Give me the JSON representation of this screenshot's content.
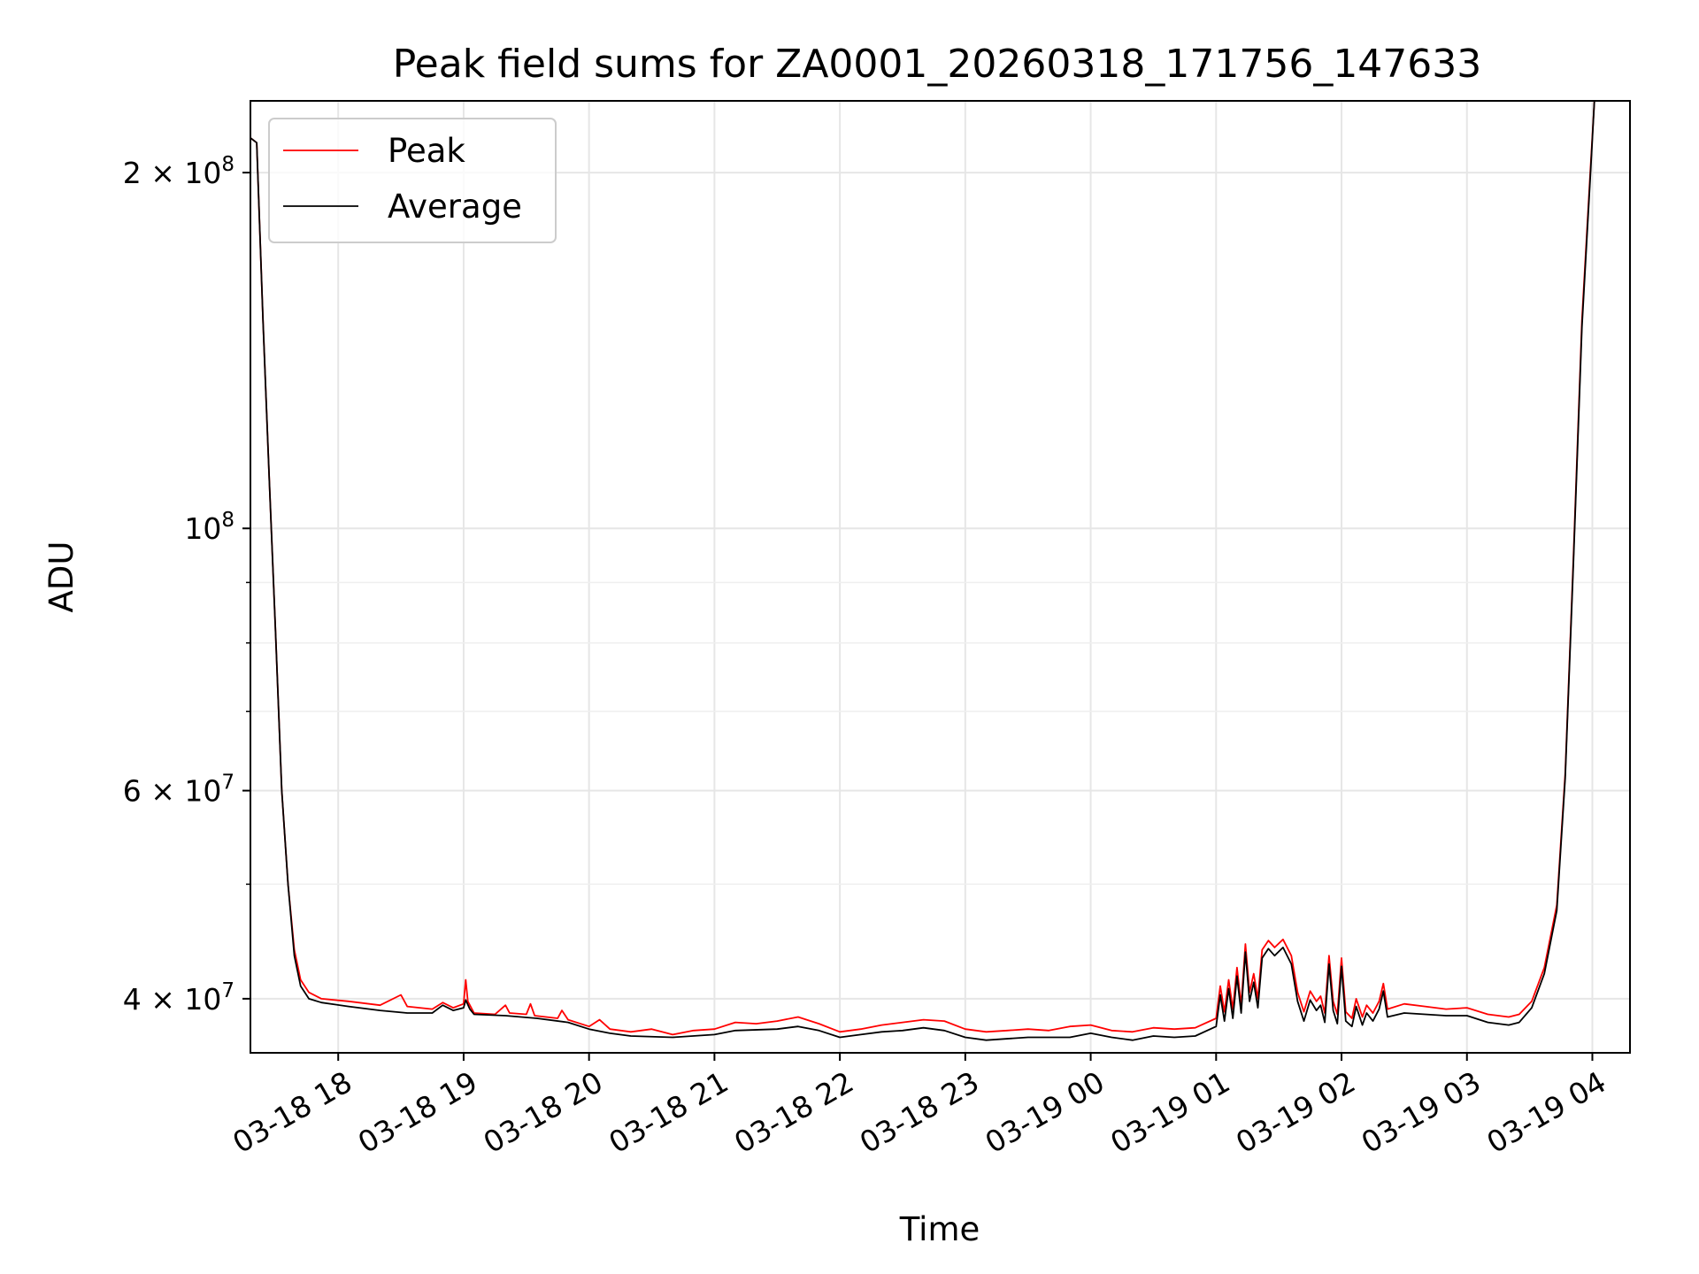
{
  "chart_data": {
    "type": "line",
    "title": "Peak field sums for ZA0001_20260318_171756_147633",
    "xlabel": "Time",
    "ylabel": "ADU",
    "yscale": "log",
    "xlim": [
      "2026-03-18 17:18",
      "2026-03-19 04:18"
    ],
    "ylim": [
      36000000,
      230000000
    ],
    "grid": true,
    "legend": "top-left",
    "x_ticks": [
      {
        "value": "2026-03-18 18:00",
        "label": "03-18 18"
      },
      {
        "value": "2026-03-18 19:00",
        "label": "03-18 19"
      },
      {
        "value": "2026-03-18 20:00",
        "label": "03-18 20"
      },
      {
        "value": "2026-03-18 21:00",
        "label": "03-18 21"
      },
      {
        "value": "2026-03-18 22:00",
        "label": "03-18 22"
      },
      {
        "value": "2026-03-18 23:00",
        "label": "03-18 23"
      },
      {
        "value": "2026-03-19 00:00",
        "label": "03-19 00"
      },
      {
        "value": "2026-03-19 01:00",
        "label": "03-19 01"
      },
      {
        "value": "2026-03-19 02:00",
        "label": "03-19 02"
      },
      {
        "value": "2026-03-19 03:00",
        "label": "03-19 03"
      },
      {
        "value": "2026-03-19 04:00",
        "label": "03-19 04"
      }
    ],
    "y_major_ticks": [
      {
        "value": 40000000,
        "base": "4 × 10",
        "exp": "7"
      },
      {
        "value": 60000000,
        "base": "6 × 10",
        "exp": "7"
      },
      {
        "value": 100000000,
        "base": "10",
        "exp": "8"
      },
      {
        "value": 200000000,
        "base": "2 × 10",
        "exp": "8"
      }
    ],
    "y_minor_ticks": [
      50000000,
      70000000,
      80000000,
      90000000
    ],
    "series": [
      {
        "name": "Peak",
        "color": "#ff0000",
        "points": [
          [
            "2026-03-18 17:18",
            214000000
          ],
          [
            "2026-03-18 17:21",
            212000000
          ],
          [
            "2026-03-18 17:24",
            150000000
          ],
          [
            "2026-03-18 17:27",
            110000000
          ],
          [
            "2026-03-18 17:30",
            82000000
          ],
          [
            "2026-03-18 17:33",
            60000000
          ],
          [
            "2026-03-18 17:36",
            50000000
          ],
          [
            "2026-03-18 17:39",
            44000000
          ],
          [
            "2026-03-18 17:42",
            41500000
          ],
          [
            "2026-03-18 17:46",
            40500000
          ],
          [
            "2026-03-18 17:52",
            40000000
          ],
          [
            "2026-03-18 18:05",
            39800000
          ],
          [
            "2026-03-18 18:20",
            39500000
          ],
          [
            "2026-03-18 18:30",
            40300000
          ],
          [
            "2026-03-18 18:33",
            39400000
          ],
          [
            "2026-03-18 18:45",
            39200000
          ],
          [
            "2026-03-18 18:50",
            39700000
          ],
          [
            "2026-03-18 18:55",
            39300000
          ],
          [
            "2026-03-18 19:00",
            39600000
          ],
          [
            "2026-03-18 19:01",
            41500000
          ],
          [
            "2026-03-18 19:02",
            39800000
          ],
          [
            "2026-03-18 19:05",
            38900000
          ],
          [
            "2026-03-18 19:15",
            38800000
          ],
          [
            "2026-03-18 19:20",
            39500000
          ],
          [
            "2026-03-18 19:22",
            38900000
          ],
          [
            "2026-03-18 19:30",
            38800000
          ],
          [
            "2026-03-18 19:32",
            39600000
          ],
          [
            "2026-03-18 19:34",
            38700000
          ],
          [
            "2026-03-18 19:45",
            38500000
          ],
          [
            "2026-03-18 19:47",
            39100000
          ],
          [
            "2026-03-18 19:50",
            38400000
          ],
          [
            "2026-03-18 20:00",
            37900000
          ],
          [
            "2026-03-18 20:05",
            38400000
          ],
          [
            "2026-03-18 20:10",
            37700000
          ],
          [
            "2026-03-18 20:20",
            37500000
          ],
          [
            "2026-03-18 20:30",
            37700000
          ],
          [
            "2026-03-18 20:40",
            37300000
          ],
          [
            "2026-03-18 20:50",
            37600000
          ],
          [
            "2026-03-18 21:00",
            37700000
          ],
          [
            "2026-03-18 21:10",
            38200000
          ],
          [
            "2026-03-18 21:20",
            38100000
          ],
          [
            "2026-03-18 21:30",
            38300000
          ],
          [
            "2026-03-18 21:40",
            38600000
          ],
          [
            "2026-03-18 21:50",
            38100000
          ],
          [
            "2026-03-18 22:00",
            37500000
          ],
          [
            "2026-03-18 22:10",
            37700000
          ],
          [
            "2026-03-18 22:20",
            38000000
          ],
          [
            "2026-03-18 22:30",
            38200000
          ],
          [
            "2026-03-18 22:40",
            38400000
          ],
          [
            "2026-03-18 22:50",
            38300000
          ],
          [
            "2026-03-18 23:00",
            37700000
          ],
          [
            "2026-03-18 23:10",
            37500000
          ],
          [
            "2026-03-18 23:20",
            37600000
          ],
          [
            "2026-03-18 23:30",
            37700000
          ],
          [
            "2026-03-18 23:40",
            37600000
          ],
          [
            "2026-03-18 23:50",
            37900000
          ],
          [
            "2026-03-19 00:00",
            38000000
          ],
          [
            "2026-03-19 00:10",
            37600000
          ],
          [
            "2026-03-19 00:20",
            37500000
          ],
          [
            "2026-03-19 00:30",
            37800000
          ],
          [
            "2026-03-19 00:40",
            37700000
          ],
          [
            "2026-03-19 00:50",
            37800000
          ],
          [
            "2026-03-19 01:00",
            38500000
          ],
          [
            "2026-03-19 01:02",
            41000000
          ],
          [
            "2026-03-19 01:04",
            39000000
          ],
          [
            "2026-03-19 01:06",
            41500000
          ],
          [
            "2026-03-19 01:08",
            39200000
          ],
          [
            "2026-03-19 01:10",
            42500000
          ],
          [
            "2026-03-19 01:12",
            39500000
          ],
          [
            "2026-03-19 01:14",
            44500000
          ],
          [
            "2026-03-19 01:16",
            40500000
          ],
          [
            "2026-03-19 01:18",
            42000000
          ],
          [
            "2026-03-19 01:20",
            40000000
          ],
          [
            "2026-03-19 01:22",
            44000000
          ],
          [
            "2026-03-19 01:25",
            44800000
          ],
          [
            "2026-03-19 01:28",
            44200000
          ],
          [
            "2026-03-19 01:32",
            44900000
          ],
          [
            "2026-03-19 01:36",
            43500000
          ],
          [
            "2026-03-19 01:39",
            40500000
          ],
          [
            "2026-03-19 01:42",
            39000000
          ],
          [
            "2026-03-19 01:45",
            40600000
          ],
          [
            "2026-03-19 01:48",
            39800000
          ],
          [
            "2026-03-19 01:50",
            40200000
          ],
          [
            "2026-03-19 01:52",
            38900000
          ],
          [
            "2026-03-19 01:54",
            43500000
          ],
          [
            "2026-03-19 01:56",
            39800000
          ],
          [
            "2026-03-19 01:58",
            38800000
          ],
          [
            "2026-03-19 02:00",
            43300000
          ],
          [
            "2026-03-19 02:02",
            39000000
          ],
          [
            "2026-03-19 02:05",
            38500000
          ],
          [
            "2026-03-19 02:07",
            40000000
          ],
          [
            "2026-03-19 02:10",
            38600000
          ],
          [
            "2026-03-19 02:12",
            39500000
          ],
          [
            "2026-03-19 02:15",
            38900000
          ],
          [
            "2026-03-19 02:18",
            39800000
          ],
          [
            "2026-03-19 02:20",
            41200000
          ],
          [
            "2026-03-19 02:22",
            39200000
          ],
          [
            "2026-03-19 02:30",
            39600000
          ],
          [
            "2026-03-19 02:40",
            39400000
          ],
          [
            "2026-03-19 02:50",
            39200000
          ],
          [
            "2026-03-19 03:00",
            39300000
          ],
          [
            "2026-03-19 03:10",
            38800000
          ],
          [
            "2026-03-19 03:20",
            38600000
          ],
          [
            "2026-03-19 03:25",
            38800000
          ],
          [
            "2026-03-19 03:31",
            39800000
          ],
          [
            "2026-03-19 03:37",
            42500000
          ],
          [
            "2026-03-19 03:43",
            48000000
          ],
          [
            "2026-03-19 03:47",
            62000000
          ],
          [
            "2026-03-19 03:51",
            95000000
          ],
          [
            "2026-03-19 03:55",
            150000000
          ],
          [
            "2026-03-19 03:59",
            200000000
          ],
          [
            "2026-03-19 04:01",
            230000000
          ]
        ]
      },
      {
        "name": "Average",
        "color": "#000000",
        "points": [
          [
            "2026-03-18 17:18",
            214000000
          ],
          [
            "2026-03-18 17:21",
            212000000
          ],
          [
            "2026-03-18 17:24",
            150000000
          ],
          [
            "2026-03-18 17:27",
            110000000
          ],
          [
            "2026-03-18 17:30",
            82000000
          ],
          [
            "2026-03-18 17:33",
            60000000
          ],
          [
            "2026-03-18 17:36",
            50000000
          ],
          [
            "2026-03-18 17:39",
            43500000
          ],
          [
            "2026-03-18 17:42",
            41000000
          ],
          [
            "2026-03-18 17:46",
            40000000
          ],
          [
            "2026-03-18 17:52",
            39700000
          ],
          [
            "2026-03-18 18:05",
            39400000
          ],
          [
            "2026-03-18 18:20",
            39100000
          ],
          [
            "2026-03-18 18:33",
            38900000
          ],
          [
            "2026-03-18 18:45",
            38900000
          ],
          [
            "2026-03-18 18:50",
            39500000
          ],
          [
            "2026-03-18 18:55",
            39100000
          ],
          [
            "2026-03-18 19:00",
            39300000
          ],
          [
            "2026-03-18 19:01",
            39900000
          ],
          [
            "2026-03-18 19:03",
            39200000
          ],
          [
            "2026-03-18 19:05",
            38800000
          ],
          [
            "2026-03-18 19:20",
            38700000
          ],
          [
            "2026-03-18 19:35",
            38500000
          ],
          [
            "2026-03-18 19:50",
            38200000
          ],
          [
            "2026-03-18 20:00",
            37700000
          ],
          [
            "2026-03-18 20:10",
            37400000
          ],
          [
            "2026-03-18 20:20",
            37200000
          ],
          [
            "2026-03-18 20:40",
            37100000
          ],
          [
            "2026-03-18 21:00",
            37300000
          ],
          [
            "2026-03-18 21:10",
            37600000
          ],
          [
            "2026-03-18 21:30",
            37700000
          ],
          [
            "2026-03-18 21:40",
            37900000
          ],
          [
            "2026-03-18 21:50",
            37600000
          ],
          [
            "2026-03-18 22:00",
            37100000
          ],
          [
            "2026-03-18 22:10",
            37300000
          ],
          [
            "2026-03-18 22:20",
            37500000
          ],
          [
            "2026-03-18 22:30",
            37600000
          ],
          [
            "2026-03-18 22:40",
            37800000
          ],
          [
            "2026-03-18 22:50",
            37600000
          ],
          [
            "2026-03-18 23:00",
            37100000
          ],
          [
            "2026-03-18 23:10",
            36900000
          ],
          [
            "2026-03-18 23:30",
            37100000
          ],
          [
            "2026-03-18 23:50",
            37100000
          ],
          [
            "2026-03-19 00:00",
            37400000
          ],
          [
            "2026-03-19 00:10",
            37100000
          ],
          [
            "2026-03-19 00:20",
            36900000
          ],
          [
            "2026-03-19 00:30",
            37200000
          ],
          [
            "2026-03-19 00:40",
            37100000
          ],
          [
            "2026-03-19 00:50",
            37200000
          ],
          [
            "2026-03-19 01:00",
            37900000
          ],
          [
            "2026-03-19 01:02",
            40300000
          ],
          [
            "2026-03-19 01:04",
            38300000
          ],
          [
            "2026-03-19 01:06",
            40800000
          ],
          [
            "2026-03-19 01:08",
            38500000
          ],
          [
            "2026-03-19 01:10",
            41800000
          ],
          [
            "2026-03-19 01:12",
            38900000
          ],
          [
            "2026-03-19 01:14",
            43800000
          ],
          [
            "2026-03-19 01:16",
            39800000
          ],
          [
            "2026-03-19 01:18",
            41300000
          ],
          [
            "2026-03-19 01:20",
            39300000
          ],
          [
            "2026-03-19 01:22",
            43300000
          ],
          [
            "2026-03-19 01:25",
            44100000
          ],
          [
            "2026-03-19 01:28",
            43500000
          ],
          [
            "2026-03-19 01:32",
            44200000
          ],
          [
            "2026-03-19 01:36",
            42800000
          ],
          [
            "2026-03-19 01:39",
            39800000
          ],
          [
            "2026-03-19 01:42",
            38300000
          ],
          [
            "2026-03-19 01:45",
            39900000
          ],
          [
            "2026-03-19 01:48",
            39100000
          ],
          [
            "2026-03-19 01:50",
            39500000
          ],
          [
            "2026-03-19 01:52",
            38200000
          ],
          [
            "2026-03-19 01:54",
            42800000
          ],
          [
            "2026-03-19 01:56",
            39100000
          ],
          [
            "2026-03-19 01:58",
            38100000
          ],
          [
            "2026-03-19 02:00",
            42600000
          ],
          [
            "2026-03-19 02:02",
            38300000
          ],
          [
            "2026-03-19 02:05",
            37900000
          ],
          [
            "2026-03-19 02:07",
            39400000
          ],
          [
            "2026-03-19 02:10",
            38000000
          ],
          [
            "2026-03-19 02:12",
            38900000
          ],
          [
            "2026-03-19 02:15",
            38300000
          ],
          [
            "2026-03-19 02:18",
            39200000
          ],
          [
            "2026-03-19 02:20",
            40600000
          ],
          [
            "2026-03-19 02:22",
            38600000
          ],
          [
            "2026-03-19 02:30",
            38900000
          ],
          [
            "2026-03-19 02:40",
            38800000
          ],
          [
            "2026-03-19 02:50",
            38700000
          ],
          [
            "2026-03-19 03:00",
            38700000
          ],
          [
            "2026-03-19 03:10",
            38200000
          ],
          [
            "2026-03-19 03:20",
            38000000
          ],
          [
            "2026-03-19 03:25",
            38200000
          ],
          [
            "2026-03-19 03:31",
            39300000
          ],
          [
            "2026-03-19 03:37",
            42000000
          ],
          [
            "2026-03-19 03:43",
            47500000
          ],
          [
            "2026-03-19 03:47",
            61500000
          ],
          [
            "2026-03-19 03:51",
            94000000
          ],
          [
            "2026-03-19 03:55",
            148000000
          ],
          [
            "2026-03-19 03:59",
            198000000
          ],
          [
            "2026-03-19 04:01",
            230000000
          ]
        ]
      }
    ]
  }
}
